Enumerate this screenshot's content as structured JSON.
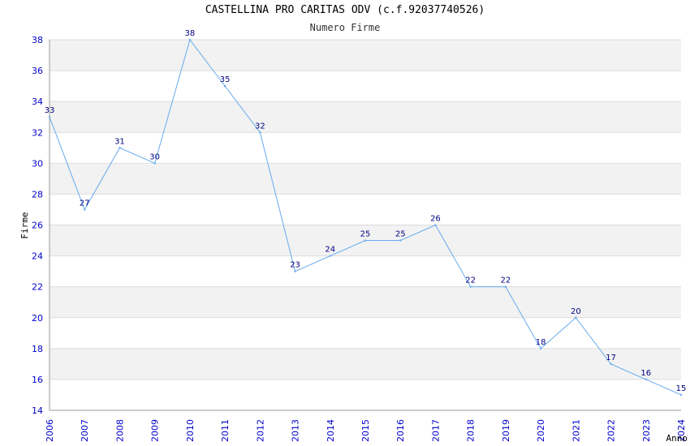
{
  "chart_data": {
    "type": "line",
    "title": "CASTELLINA PRO CARITAS ODV (c.f.92037740526)",
    "subtitle": "Numero Firme",
    "xlabel": "Anno",
    "ylabel": "Firme",
    "ylim": [
      14,
      38
    ],
    "ytick_step": 2,
    "grid": true,
    "x": [
      2006,
      2007,
      2008,
      2009,
      2010,
      2011,
      2012,
      2013,
      2014,
      2015,
      2016,
      2017,
      2018,
      2019,
      2020,
      2021,
      2022,
      2023,
      2024
    ],
    "values": [
      33,
      27,
      31,
      30,
      38,
      35,
      32,
      23,
      24,
      25,
      25,
      26,
      22,
      22,
      18,
      20,
      17,
      16,
      15
    ],
    "colors": {
      "line": "#66aaee",
      "band_alt": "#f2f2f2",
      "grid": "#dddddd",
      "axis": "#999999",
      "tick_text": "#0000cc",
      "data_label": "#000080"
    }
  }
}
